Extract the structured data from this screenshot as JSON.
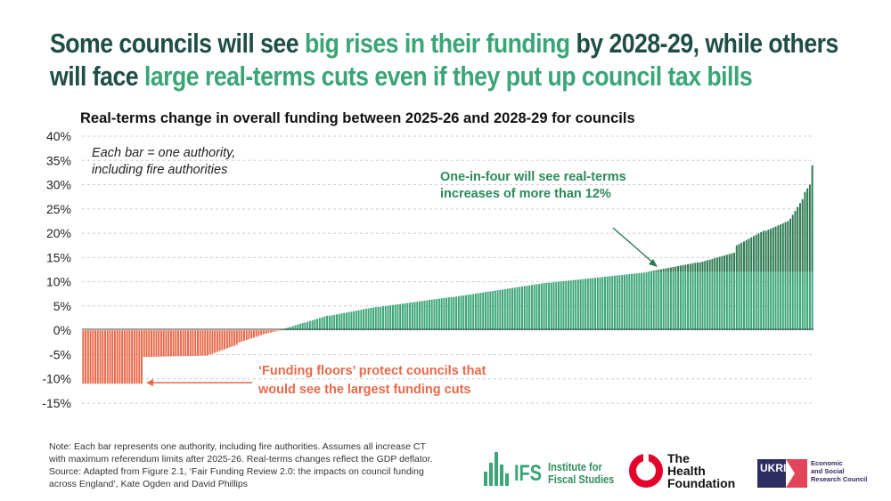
{
  "headline": {
    "part1": "Some councils will see ",
    "part2": "big rises in their funding",
    "part3": " by 2028-29, while others",
    "part4": "will face ",
    "part5": "large real-terms cuts even if they put up council tax bills"
  },
  "colors": {
    "green": "#3aa577",
    "dark_green": "#2b7a52",
    "red": "#e8694a",
    "grid": "#cccccc",
    "title": "#1f4e46"
  },
  "chart_data": {
    "type": "bar",
    "title": "Real-terms change in overall funding between 2025-26 and 2028-29 for councils",
    "ylim": [
      -15,
      40
    ],
    "yticks": [
      "40%",
      "35%",
      "30%",
      "25%",
      "20%",
      "15%",
      "10%",
      "5%",
      "0%",
      "-5%",
      "-10%",
      "-15%"
    ],
    "ytick_values": [
      40,
      35,
      30,
      25,
      20,
      15,
      10,
      5,
      0,
      -5,
      -10,
      -15
    ],
    "n_bars": 300,
    "series": [
      {
        "name": "Real-terms change (%)",
        "segments": [
          {
            "count": 25,
            "from": -11,
            "to": -11
          },
          {
            "count": 27,
            "from": -5.5,
            "to": -5.2
          },
          {
            "count": 12,
            "from": -5.0,
            "to": -3.0
          },
          {
            "count": 10,
            "from": -2.5,
            "to": -1.0
          },
          {
            "count": 7,
            "from": -0.8,
            "to": -0.1
          },
          {
            "count": 10,
            "from": 0.1,
            "to": 1.5
          },
          {
            "count": 10,
            "from": 1.6,
            "to": 3.0
          },
          {
            "count": 20,
            "from": 3.0,
            "to": 4.8
          },
          {
            "count": 30,
            "from": 4.8,
            "to": 6.8
          },
          {
            "count": 40,
            "from": 6.8,
            "to": 9.8
          },
          {
            "count": 40,
            "from": 9.8,
            "to": 11.9
          },
          {
            "count": 22,
            "from": 12.0,
            "to": 14.0
          },
          {
            "count": 15,
            "from": 14.0,
            "to": 16.0
          },
          {
            "count": 12,
            "from": 17.5,
            "to": 20.5
          },
          {
            "count": 10,
            "from": 20.5,
            "to": 22.5
          },
          {
            "count": 6,
            "from": 23.0,
            "to": 27.0
          },
          {
            "count": 3,
            "from": 28.5,
            "to": 30.0
          },
          {
            "count": 1,
            "from": 34.0,
            "to": 34.0
          }
        ]
      }
    ],
    "threshold": 12,
    "annotations": {
      "bar_note_line1": "Each bar = one authority,",
      "bar_note_line2": "including fire authorities",
      "green_line1": "One-in-four will see real-terms",
      "green_line2": "increases of more than 12%",
      "red_line1": "‘Funding floors’ protect councils that",
      "red_line2": "would see the largest funding cuts"
    }
  },
  "note": {
    "line1": "Note: Each bar represents one authority, including fire authorities. Assumes all increase CT",
    "line2": "with maximum referendum limits after 2025-26. Real-terms changes reflect the GDP deflator.",
    "line3": "Source: Adapted from Figure 2.1, ‘Fair Funding Review 2.0: the impacts on council funding",
    "line4": "across England’, Kate Ogden and David Phillips"
  },
  "logos": {
    "ifs_name": "IFS",
    "ifs_line1": "Institute for",
    "ifs_line2": "Fiscal Studies",
    "health_line1": "The",
    "health_line2": "Health",
    "health_line3": "Foundation",
    "ukri_badge": "UKRI",
    "esrc_line1": "Economic",
    "esrc_line2": "and Social",
    "esrc_line3": "Research Council"
  }
}
